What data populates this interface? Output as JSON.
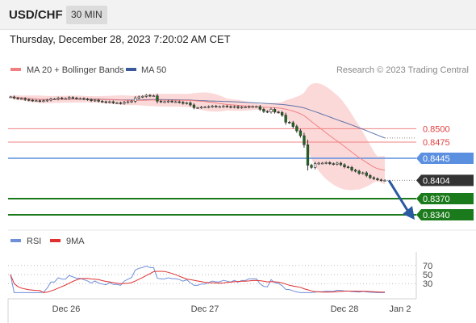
{
  "header": {
    "symbol": "USD/CHF",
    "timeframe": "30 MIN"
  },
  "datetime": "Thursday, December 28, 2023 7:20:02 AM CET",
  "credit": "Research © 2023 Trading Central",
  "colors": {
    "ma20": "#f08080",
    "ma50": "#3a5a9a",
    "band": "#fbd2d2",
    "resistance": "#f08080",
    "pivot": "#5b8fe0",
    "support": "#1b7a1b",
    "current": "#333333",
    "arrow": "#2a5aa0",
    "rsi": "#6f8fd8",
    "rsi_ma": "#e03030",
    "candle_up": "#ffffff",
    "candle_down": "#1a6e1a"
  },
  "chart_data": [
    {
      "type": "candlestick",
      "legend": [
        {
          "name": "MA 20 + Bollinger Bands",
          "color": "#f08080"
        },
        {
          "name": "MA 50",
          "color": "#3a5a9a"
        }
      ],
      "x_ticks": [
        "Dec 26",
        "Dec 27",
        "Dec 28",
        "Jan 2"
      ],
      "ylim": [
        0.8325,
        0.8595
      ],
      "levels": [
        {
          "label": "0.8500",
          "value": 0.85,
          "kind": "resistance"
        },
        {
          "label": "0.8475",
          "value": 0.8475,
          "kind": "resistance"
        },
        {
          "label": "0.8445",
          "value": 0.8445,
          "kind": "pivot"
        },
        {
          "label": "0.8404",
          "value": 0.8404,
          "kind": "current"
        },
        {
          "label": "0.8370",
          "value": 0.837,
          "kind": "support"
        },
        {
          "label": "0.8340",
          "value": 0.834,
          "kind": "support"
        }
      ],
      "close": [
        0.8559,
        0.8557,
        0.8556,
        0.8556,
        0.8554,
        0.8553,
        0.8552,
        0.8552,
        0.8551,
        0.8552,
        0.8553,
        0.8555,
        0.8555,
        0.8557,
        0.8556,
        0.8556,
        0.8558,
        0.8557,
        0.8556,
        0.8556,
        0.8555,
        0.8554,
        0.8552,
        0.8553,
        0.8551,
        0.855,
        0.8549,
        0.855,
        0.8548,
        0.8548,
        0.8547,
        0.8549,
        0.855,
        0.8551,
        0.8557,
        0.8559,
        0.856,
        0.8562,
        0.8561,
        0.8561,
        0.8551,
        0.855,
        0.855,
        0.8551,
        0.855,
        0.855,
        0.8549,
        0.8547,
        0.8548,
        0.8544,
        0.8539,
        0.8539,
        0.854,
        0.854,
        0.8541,
        0.8542,
        0.8541,
        0.8541,
        0.8542,
        0.8541,
        0.854,
        0.8541,
        0.8539,
        0.854,
        0.854,
        0.8541,
        0.8541,
        0.8541,
        0.8536,
        0.8532,
        0.8531,
        0.8536,
        0.8531,
        0.853,
        0.8525,
        0.8512,
        0.8511,
        0.8504,
        0.8496,
        0.8487,
        0.847,
        0.8432,
        0.8428,
        0.8435,
        0.8436,
        0.8436,
        0.8437,
        0.8435,
        0.8434,
        0.8436,
        0.8433,
        0.8429,
        0.8428,
        0.8423,
        0.8421,
        0.8417,
        0.8418,
        0.8413,
        0.8409,
        0.8407,
        0.8405,
        0.8404,
        0.8404
      ],
      "rsi": {
        "legend": [
          {
            "name": "RSI",
            "color": "#6f8fd8"
          },
          {
            "name": "9MA",
            "color": "#e03030"
          }
        ],
        "levels": [
          {
            "label": "70",
            "value": 70
          },
          {
            "label": "50",
            "value": 50
          },
          {
            "label": "30",
            "value": 30
          }
        ],
        "ylim": [
          0,
          100
        ]
      }
    }
  ]
}
